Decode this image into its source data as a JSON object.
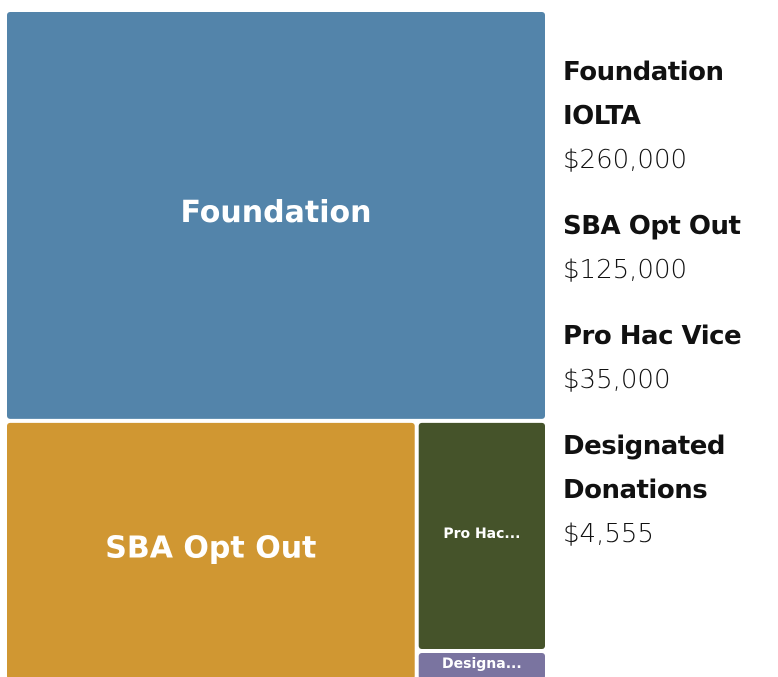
{
  "chart_data": {
    "type": "treemap",
    "categories": [
      "Foundation IOLTA",
      "SBA Opt Out",
      "Pro Hac Vice",
      "Designated Donations"
    ],
    "box_labels": [
      "Foundation",
      "SBA Opt Out",
      "Pro Hac...",
      "Designa..."
    ],
    "values": [
      260000,
      125000,
      35000,
      4555
    ],
    "value_labels": [
      "$260,000",
      "$125,000",
      "$35,000",
      "$4,555"
    ],
    "colors": [
      "#5384aa",
      "#d09732",
      "#45532a",
      "#7a74a0"
    ]
  }
}
